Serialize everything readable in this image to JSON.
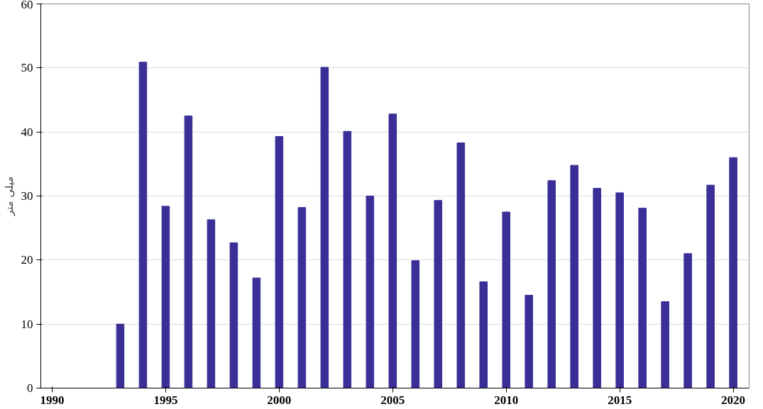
{
  "chart_data": {
    "type": "bar",
    "ylabel": "میلی متر",
    "x": [
      1993,
      1994,
      1995,
      1996,
      1997,
      1998,
      1999,
      2000,
      2001,
      2002,
      2003,
      2004,
      2005,
      2006,
      2007,
      2008,
      2009,
      2010,
      2011,
      2012,
      2013,
      2014,
      2015,
      2016,
      2017,
      2018,
      2019,
      2020
    ],
    "values": [
      10,
      50.9,
      28.4,
      42.5,
      26.3,
      22.7,
      17.2,
      39.3,
      28.2,
      50.1,
      40.1,
      30.0,
      42.8,
      19.9,
      29.3,
      38.3,
      16.6,
      27.5,
      14.5,
      32.4,
      34.8,
      31.2,
      30.5,
      28.1,
      13.5,
      21.0,
      31.7,
      36.0
    ],
    "color": "#3a2f97",
    "xlim": [
      1989.5,
      2020.7
    ],
    "xticks": [
      1990,
      1995,
      2000,
      2005,
      2010,
      2015,
      2020
    ],
    "ylim": [
      0,
      60
    ],
    "yticks": [
      0,
      10,
      20,
      30,
      40,
      50,
      60
    ],
    "grid": "y"
  }
}
